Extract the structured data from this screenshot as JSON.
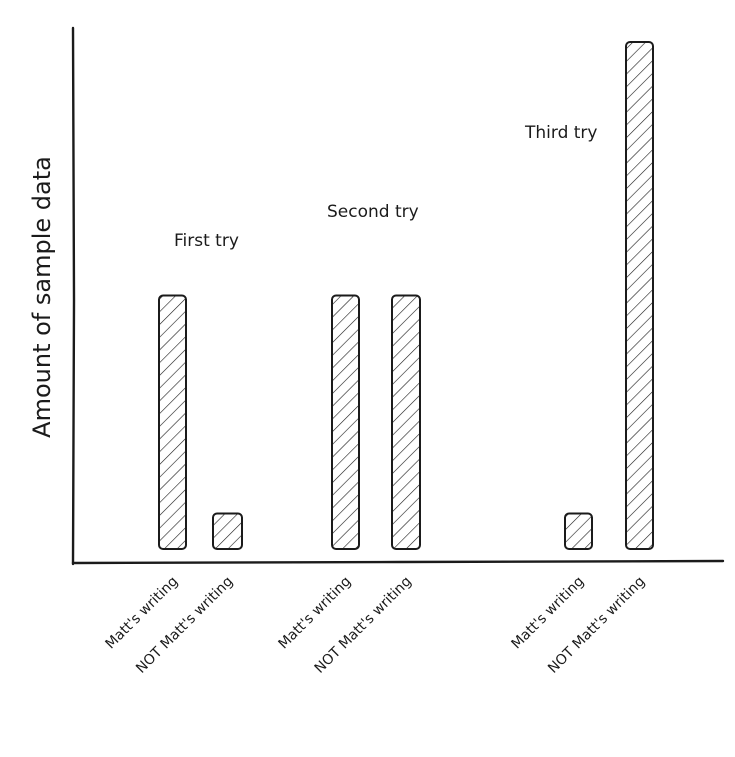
{
  "chart_data": {
    "type": "bar",
    "title": "",
    "xlabel": "",
    "ylabel": "Amount of sample data",
    "groups": [
      {
        "label": "First try",
        "categories": [
          "Matt's writing",
          "NOT Matt's writing"
        ],
        "values": [
          50,
          7
        ]
      },
      {
        "label": "Second try",
        "categories": [
          "Matt's writing",
          "NOT Matt's writing"
        ],
        "values": [
          50,
          50
        ]
      },
      {
        "label": "Third try",
        "categories": [
          "Matt's writing",
          "NOT Matt's writing"
        ],
        "values": [
          7,
          100
        ]
      }
    ],
    "ylim": [
      0,
      100
    ],
    "y_ticks_shown": false,
    "grid": false,
    "legend": "none",
    "style": "hand-drawn, hatched bars"
  }
}
